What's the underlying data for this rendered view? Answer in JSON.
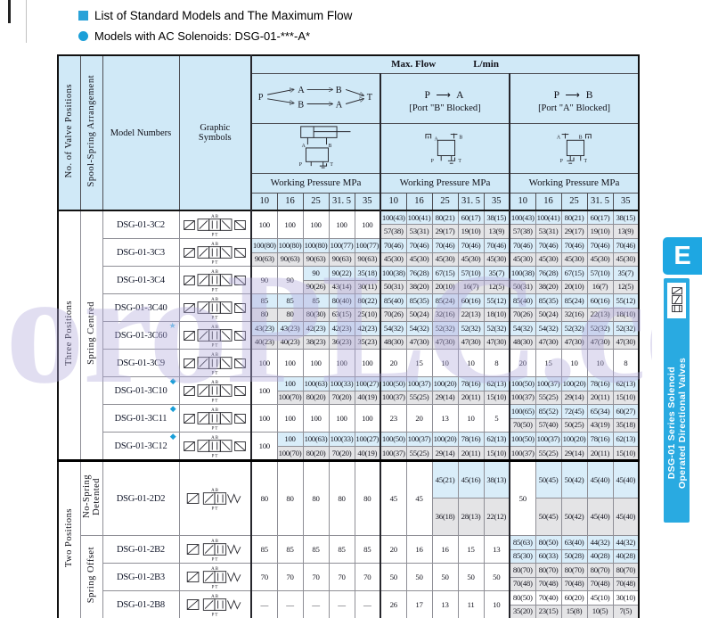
{
  "page": {
    "title1": "List of Standard Models and The Maximum Flow",
    "title2": "Models with AC Solenoids: DSG-01-***-A*",
    "watermark": "oroPLC.com",
    "accent_blue": "#1b9fd8"
  },
  "sidebar": {
    "tab_letter": "E",
    "bar_color": "#29aae1",
    "line1": "DSG-01 Series Solenoid",
    "line2": "Operated Directional Valves"
  },
  "header": {
    "col_positions": "No. of Valve Positions",
    "col_spool": "Spool-Spring Arrangement",
    "col_model": "Model Numbers",
    "col_symbol": "Graphic Symbols",
    "max_flow": "Max. Flow",
    "unit": "L/min",
    "fp": "P",
    "fa": "A",
    "fb": "B",
    "ft": "T",
    "g2a": "P ⟶ A",
    "g2b": "[Port \"B\" Blocked]",
    "g3a": "P ⟶ B",
    "g3b": "[Port \"A\" Blocked]",
    "working_pressure": "Working Pressure  MPa",
    "pressures": [
      "10",
      "16",
      "25",
      "31. 5",
      "35"
    ]
  },
  "sections": {
    "three": "Three Positions",
    "two": "Two Positions",
    "centred": "Spring Centred",
    "detent": "No-Spring\nDetented",
    "offset": "Spring Offset"
  },
  "markers": {
    "star": "★",
    "dia": "◆"
  },
  "cell_colors": {
    "top": "#d9edf9",
    "bottom": "#e4e4e6",
    "single": "#ffffff"
  },
  "table": {
    "rows": [
      {
        "m": "DSG-01-3C2",
        "mk": "",
        "sym": "3",
        "cells": [
          [
            "100"
          ],
          [
            "100"
          ],
          [
            "100"
          ],
          [
            "100"
          ],
          [
            "100"
          ],
          [
            "100(43)",
            "57(38)"
          ],
          [
            "100(41)",
            "53(31)"
          ],
          [
            "80(21)",
            "29(17)"
          ],
          [
            "60(17)",
            "19(10)"
          ],
          [
            "38(15)",
            "13(9)"
          ],
          [
            "100(43)",
            "57(38)"
          ],
          [
            "100(41)",
            "53(31)"
          ],
          [
            "80(21)",
            "29(17)"
          ],
          [
            "60(17)",
            "19(10)"
          ],
          [
            "38(15)",
            "13(9)"
          ]
        ]
      },
      {
        "m": "DSG-01-3C3",
        "mk": "",
        "sym": "3",
        "cells": [
          [
            "100(80)",
            "90(63)"
          ],
          [
            "100(80)",
            "90(63)"
          ],
          [
            "100(80)",
            "90(63)"
          ],
          [
            "100(77)",
            "90(63)"
          ],
          [
            "100(77)",
            "90(63)"
          ],
          [
            "70(46)",
            "45(30)"
          ],
          [
            "70(46)",
            "45(30)"
          ],
          [
            "70(46)",
            "45(30)"
          ],
          [
            "70(46)",
            "45(30)"
          ],
          [
            "70(46)",
            "45(30)"
          ],
          [
            "70(46)",
            "45(30)"
          ],
          [
            "70(46)",
            "45(30)"
          ],
          [
            "70(46)",
            "45(30)"
          ],
          [
            "70(46)",
            "45(30)"
          ],
          [
            "70(46)",
            "45(30)"
          ]
        ]
      },
      {
        "m": "DSG-01-3C4",
        "mk": "",
        "sym": "3",
        "cells": [
          [
            "90"
          ],
          [
            "90"
          ],
          [
            "90",
            "90(26)"
          ],
          [
            "90(22)",
            "43(14)"
          ],
          [
            "35(18)",
            "30(11)"
          ],
          [
            "100(38)",
            "50(31)"
          ],
          [
            "76(28)",
            "38(20)"
          ],
          [
            "67(15)",
            "20(10)"
          ],
          [
            "57(10)",
            "16(7)"
          ],
          [
            "35(7)",
            "12(5)"
          ],
          [
            "100(38)",
            "50(31)"
          ],
          [
            "76(28)",
            "38(20)"
          ],
          [
            "67(15)",
            "20(10)"
          ],
          [
            "57(10)",
            "16(7)"
          ],
          [
            "35(7)",
            "12(5)"
          ]
        ]
      },
      {
        "m": "DSG-01-3C40",
        "mk": "",
        "sym": "3",
        "cells": [
          [
            "85",
            "80"
          ],
          [
            "85",
            "80"
          ],
          [
            "85",
            "80(30)"
          ],
          [
            "80(40)",
            "63(15)"
          ],
          [
            "80(22)",
            "25(10)"
          ],
          [
            "85(40)",
            "70(26)"
          ],
          [
            "85(35)",
            "50(24)"
          ],
          [
            "85(24)",
            "32(16)"
          ],
          [
            "60(16)",
            "22(13)"
          ],
          [
            "55(12)",
            "18(10)"
          ],
          [
            "85(40)",
            "70(26)"
          ],
          [
            "85(35)",
            "50(24)"
          ],
          [
            "85(24)",
            "32(16)"
          ],
          [
            "60(16)",
            "22(13)"
          ],
          [
            "55(12)",
            "18(10)"
          ]
        ]
      },
      {
        "m": "DSG-01-3C60",
        "mk": "star",
        "sym": "3",
        "cells": [
          [
            "43(23)",
            "40(23)"
          ],
          [
            "43(23)",
            "40(23)"
          ],
          [
            "42(23)",
            "38(23)"
          ],
          [
            "42(23)",
            "36(23)"
          ],
          [
            "42(23)",
            "35(23)"
          ],
          [
            "54(32)",
            "48(30)"
          ],
          [
            "54(32)",
            "47(30)"
          ],
          [
            "52(32)",
            "47(30)"
          ],
          [
            "52(32)",
            "47(30)"
          ],
          [
            "52(32)",
            "47(30)"
          ],
          [
            "54(32)",
            "48(30)"
          ],
          [
            "54(32)",
            "47(30)"
          ],
          [
            "52(32)",
            "47(30)"
          ],
          [
            "52(32)",
            "47(30)"
          ],
          [
            "52(32)",
            "47(30)"
          ]
        ]
      },
      {
        "m": "DSG-01-3C9",
        "mk": "",
        "sym": "3",
        "cells": [
          [
            "100"
          ],
          [
            "100"
          ],
          [
            "100"
          ],
          [
            "100"
          ],
          [
            "100"
          ],
          [
            "20"
          ],
          [
            "15"
          ],
          [
            "10"
          ],
          [
            "10"
          ],
          [
            "8"
          ],
          [
            "20"
          ],
          [
            "15"
          ],
          [
            "10"
          ],
          [
            "10"
          ],
          [
            "8"
          ]
        ]
      },
      {
        "m": "DSG-01-3C10",
        "mk": "dia",
        "sym": "3",
        "cells": [
          [
            "100"
          ],
          [
            "100",
            "100(70)"
          ],
          [
            "100(63)",
            "80(20)"
          ],
          [
            "100(33)",
            "70(20)"
          ],
          [
            "100(27)",
            "40(19)"
          ],
          [
            "100(50)",
            "100(37)"
          ],
          [
            "100(37)",
            "55(25)"
          ],
          [
            "100(20)",
            "29(14)"
          ],
          [
            "78(16)",
            "20(11)"
          ],
          [
            "62(13)",
            "15(10)"
          ],
          [
            "100(50)",
            "100(37)"
          ],
          [
            "100(37)",
            "55(25)"
          ],
          [
            "100(20)",
            "29(14)"
          ],
          [
            "78(16)",
            "20(11)"
          ],
          [
            "62(13)",
            "15(10)"
          ]
        ]
      },
      {
        "m": "DSG-01-3C11",
        "mk": "dia",
        "sym": "3",
        "cells": [
          [
            "100"
          ],
          [
            "100"
          ],
          [
            "100"
          ],
          [
            "100"
          ],
          [
            "100"
          ],
          [
            "23"
          ],
          [
            "20"
          ],
          [
            "13"
          ],
          [
            "10"
          ],
          [
            "5"
          ],
          [
            "100(65)",
            "70(50)"
          ],
          [
            "85(52)",
            "57(40)"
          ],
          [
            "72(45)",
            "50(25)"
          ],
          [
            "65(34)",
            "43(19)"
          ],
          [
            "60(27)",
            "35(18)"
          ]
        ]
      },
      {
        "m": "DSG-01-3C12",
        "mk": "dia",
        "sym": "3",
        "cells": [
          [
            "100"
          ],
          [
            "100",
            "100(70)"
          ],
          [
            "100(63)",
            "80(20)"
          ],
          [
            "100(33)",
            "70(20)"
          ],
          [
            "100(27)",
            "40(19)"
          ],
          [
            "100(50)",
            "100(37)"
          ],
          [
            "100(37)",
            "55(25)"
          ],
          [
            "100(20)",
            "29(14)"
          ],
          [
            "78(16)",
            "20(11)"
          ],
          [
            "62(13)",
            "15(10)"
          ],
          [
            "100(50)",
            "100(37)"
          ],
          [
            "100(37)",
            "55(25)"
          ],
          [
            "100(20)",
            "29(14)"
          ],
          [
            "78(16)",
            "20(11)"
          ],
          [
            "62(13)",
            "15(10)"
          ]
        ]
      },
      {
        "m": "DSG-01-2D2",
        "mk": "",
        "sym": "2",
        "tall": true,
        "cells": [
          [
            "80"
          ],
          [
            "80"
          ],
          [
            "80"
          ],
          [
            "80"
          ],
          [
            "80"
          ],
          [
            "45"
          ],
          [
            "45"
          ],
          [
            "45(21)",
            "36(18)"
          ],
          [
            "45(16)",
            "28(13)"
          ],
          [
            "38(13)",
            "22(12)"
          ],
          [
            "50"
          ],
          [
            "50(45)",
            "50(45)"
          ],
          [
            "50(42)",
            "50(42)"
          ],
          [
            "45(40)",
            "45(40)"
          ],
          [
            "45(40)",
            "45(40)"
          ]
        ]
      },
      {
        "m": "DSG-01-2B2",
        "mk": "",
        "sym": "2",
        "cells": [
          [
            "85"
          ],
          [
            "85"
          ],
          [
            "85"
          ],
          [
            "85"
          ],
          [
            "85"
          ],
          [
            "20"
          ],
          [
            "16"
          ],
          [
            "16"
          ],
          [
            "15"
          ],
          [
            "13"
          ],
          [
            "85(63)",
            "85(30)",
            "bb"
          ],
          [
            "80(50)",
            "60(33)",
            "bb"
          ],
          [
            "63(40)",
            "50(28)",
            "bb"
          ],
          [
            "44(32)",
            "40(28)",
            "bb"
          ],
          [
            "44(32)",
            "40(28)",
            "bb"
          ]
        ]
      },
      {
        "m": "DSG-01-2B3",
        "mk": "",
        "sym": "2",
        "cells": [
          [
            "70"
          ],
          [
            "70"
          ],
          [
            "70"
          ],
          [
            "70"
          ],
          [
            "70"
          ],
          [
            "50"
          ],
          [
            "50"
          ],
          [
            "50"
          ],
          [
            "50"
          ],
          [
            "50"
          ],
          [
            "80(70)",
            "70(48)",
            "gg"
          ],
          [
            "80(70)",
            "70(48)",
            "gg"
          ],
          [
            "80(70)",
            "70(48)",
            "gg"
          ],
          [
            "80(70)",
            "70(48)",
            "gg"
          ],
          [
            "80(70)",
            "70(48)",
            "gg"
          ]
        ]
      },
      {
        "m": "DSG-01-2B8",
        "mk": "",
        "sym": "2",
        "cells": [
          [
            "—"
          ],
          [
            "—"
          ],
          [
            "—"
          ],
          [
            "—"
          ],
          [
            "—"
          ],
          [
            "26"
          ],
          [
            "17"
          ],
          [
            "13"
          ],
          [
            "11"
          ],
          [
            "10"
          ],
          [
            "80(50)",
            "35(20)",
            "wg"
          ],
          [
            "70(40)",
            "23(15)",
            "wg"
          ],
          [
            "60(20)",
            "15(8)",
            "wg"
          ],
          [
            "45(10)",
            "10(5)",
            "wg"
          ],
          [
            "30(10)",
            "7(5)",
            "wg"
          ]
        ]
      }
    ]
  }
}
